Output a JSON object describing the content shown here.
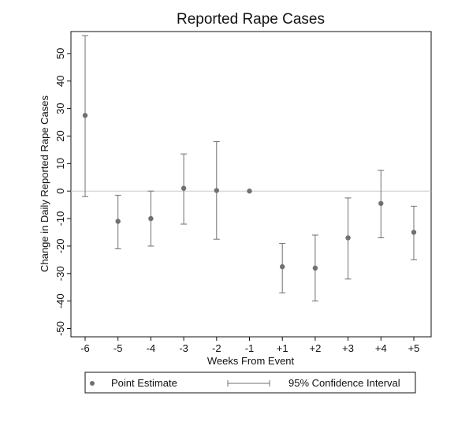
{
  "chart_data": {
    "type": "scatter",
    "title": "Reported Rape Cases",
    "xlabel": "Weeks From Event",
    "ylabel": "Change in Daily  Reported Rape Cases",
    "categories": [
      "-6",
      "-5",
      "-4",
      "-3",
      "-2",
      "-1",
      "+1",
      "+2",
      "+3",
      "+4",
      "+5"
    ],
    "series": [
      {
        "name": "Point Estimate",
        "values": [
          27.5,
          -11,
          -10,
          1,
          0.2,
          0,
          -27.5,
          -28,
          -17,
          -4.5,
          -15
        ]
      },
      {
        "name": "95% Confidence Interval",
        "lower": [
          -2,
          -21,
          -20,
          -12,
          -17.5,
          0,
          -37,
          -40,
          -32,
          -17,
          -25
        ],
        "upper": [
          56.5,
          -1.5,
          0,
          13.5,
          18,
          0,
          -19,
          -16,
          -2.5,
          7.5,
          -5.5
        ]
      }
    ],
    "yticks": [
      "50",
      "40",
      "30",
      "20",
      "10",
      "0",
      "-10",
      "-20",
      "-30",
      "-40",
      "-50"
    ],
    "ylim": [
      -53,
      58
    ],
    "reference_line": 0,
    "grid": false,
    "legend_position": "bottom",
    "colors": {
      "point": "#707070",
      "interval": "#707070",
      "axis": "#111111",
      "reference_line": "#c8c8c8"
    }
  }
}
